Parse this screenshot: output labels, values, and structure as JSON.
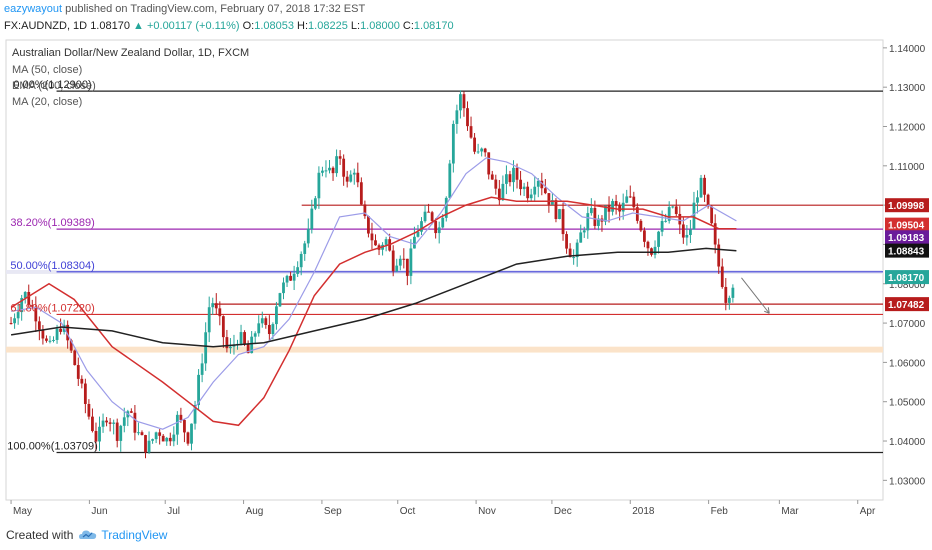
{
  "header": {
    "user": "eazywayout",
    "published_text": "published on TradingView.com, February 07, 2018 17:32 EST",
    "symbol": "FX:AUDNZD, 1D",
    "last": "1.08170",
    "change": "+0.00117 (+0.11%)",
    "o_label": "O:",
    "o_value": "1.08053",
    "h_label": "H:",
    "h_value": "1.08225",
    "l_label": "L:",
    "l_value": "1.08000",
    "c_label": "C:",
    "c_value": "1.08170"
  },
  "legend": {
    "title": "Australian Dollar/New Zealand Dollar, 1D, FXCM",
    "items": [
      "MA (50, close)",
      "EMA (200, close)",
      "MA (20, close)"
    ]
  },
  "footer": {
    "created_with": "Created with",
    "brand": "TradingView"
  },
  "colors": {
    "bull": "#26a69a",
    "bear": "#b71c1c",
    "ma50": "#9c9ce8",
    "ema200": "#222222",
    "ma20": "#d32f2f",
    "fib": "#7b1fa2",
    "fib50": "#3f3fd6",
    "fib618": "#d32f2f",
    "zone": "#fbe3c9"
  },
  "chart_data": {
    "type": "candlestick",
    "y_axis": {
      "range": [
        1.025,
        1.142
      ],
      "ticks": [
        "1.14000",
        "1.13000",
        "1.12000",
        "1.11000",
        "1.10000",
        "1.09000",
        "1.08000",
        "1.07000",
        "1.06000",
        "1.05000",
        "1.04000",
        "1.03000"
      ]
    },
    "x_axis": {
      "labels": [
        {
          "label": "May",
          "t": 0
        },
        {
          "label": "Jun",
          "t": 31
        },
        {
          "label": "Jul",
          "t": 61
        },
        {
          "label": "Aug",
          "t": 92
        },
        {
          "label": "Sep",
          "t": 123
        },
        {
          "label": "Oct",
          "t": 153
        },
        {
          "label": "Nov",
          "t": 184
        },
        {
          "label": "Dec",
          "t": 214
        },
        {
          "label": "2018",
          "t": 245
        },
        {
          "label": "Feb",
          "t": 276
        },
        {
          "label": "Mar",
          "t": 304
        },
        {
          "label": "Apr",
          "t": 335
        }
      ],
      "range": [
        -2,
        345
      ]
    },
    "price_anchors": [
      [
        0,
        1.07
      ],
      [
        5,
        1.078
      ],
      [
        10,
        1.072
      ],
      [
        15,
        1.063
      ],
      [
        20,
        1.07
      ],
      [
        25,
        1.06
      ],
      [
        30,
        1.048
      ],
      [
        34,
        1.04
      ],
      [
        38,
        1.047
      ],
      [
        42,
        1.042
      ],
      [
        46,
        1.048
      ],
      [
        50,
        1.042
      ],
      [
        54,
        1.038
      ],
      [
        58,
        1.043
      ],
      [
        62,
        1.04
      ],
      [
        66,
        1.046
      ],
      [
        70,
        1.041
      ],
      [
        73,
        1.05
      ],
      [
        76,
        1.063
      ],
      [
        79,
        1.077
      ],
      [
        83,
        1.069
      ],
      [
        86,
        1.062
      ],
      [
        90,
        1.067
      ],
      [
        94,
        1.062
      ],
      [
        98,
        1.071
      ],
      [
        102,
        1.067
      ],
      [
        106,
        1.078
      ],
      [
        110,
        1.081
      ],
      [
        114,
        1.087
      ],
      [
        118,
        1.093
      ],
      [
        121,
        1.106
      ],
      [
        124,
        1.111
      ],
      [
        127,
        1.107
      ],
      [
        130,
        1.113
      ],
      [
        133,
        1.105
      ],
      [
        136,
        1.11
      ],
      [
        139,
        1.097
      ],
      [
        142,
        1.093
      ],
      [
        145,
        1.088
      ],
      [
        148,
        1.092
      ],
      [
        151,
        1.085
      ],
      [
        154,
        1.088
      ],
      [
        157,
        1.083
      ],
      [
        160,
        1.093
      ],
      [
        163,
        1.096
      ],
      [
        166,
        1.098
      ],
      [
        169,
        1.093
      ],
      [
        172,
        1.102
      ],
      [
        175,
        1.121
      ],
      [
        178,
        1.128
      ],
      [
        181,
        1.12
      ],
      [
        184,
        1.112
      ],
      [
        187,
        1.114
      ],
      [
        190,
        1.106
      ],
      [
        193,
        1.103
      ],
      [
        196,
        1.106
      ],
      [
        199,
        1.108
      ],
      [
        202,
        1.105
      ],
      [
        205,
        1.103
      ],
      [
        208,
        1.108
      ],
      [
        211,
        1.104
      ],
      [
        214,
        1.1
      ],
      [
        217,
        1.097
      ],
      [
        220,
        1.09
      ],
      [
        223,
        1.086
      ],
      [
        226,
        1.094
      ],
      [
        229,
        1.098
      ],
      [
        232,
        1.095
      ],
      [
        235,
        1.098
      ],
      [
        238,
        1.1
      ],
      [
        241,
        1.098
      ],
      [
        244,
        1.102
      ],
      [
        247,
        1.099
      ],
      [
        250,
        1.093
      ],
      [
        253,
        1.088
      ],
      [
        256,
        1.093
      ],
      [
        259,
        1.096
      ],
      [
        262,
        1.1
      ],
      [
        265,
        1.093
      ],
      [
        268,
        1.091
      ],
      [
        271,
        1.103
      ],
      [
        273,
        1.105
      ],
      [
        275,
        1.1
      ],
      [
        277,
        1.095
      ],
      [
        279,
        1.087
      ],
      [
        281,
        1.082
      ],
      [
        283,
        1.076
      ],
      [
        285,
        1.08
      ],
      [
        287,
        1.0817
      ]
    ],
    "ma20": [
      [
        0,
        1.074
      ],
      [
        15,
        1.08
      ],
      [
        25,
        1.076
      ],
      [
        40,
        1.064
      ],
      [
        60,
        1.055
      ],
      [
        70,
        1.05
      ],
      [
        80,
        1.045
      ],
      [
        90,
        1.044
      ],
      [
        100,
        1.051
      ],
      [
        110,
        1.063
      ],
      [
        120,
        1.077
      ],
      [
        130,
        1.085
      ],
      [
        140,
        1.088
      ],
      [
        150,
        1.09
      ],
      [
        160,
        1.093
      ],
      [
        170,
        1.097
      ],
      [
        180,
        1.1
      ],
      [
        190,
        1.102
      ],
      [
        200,
        1.101
      ],
      [
        210,
        1.101
      ],
      [
        220,
        1.101
      ],
      [
        230,
        1.1
      ],
      [
        240,
        1.099
      ],
      [
        250,
        1.099
      ],
      [
        260,
        1.097
      ],
      [
        270,
        1.097
      ],
      [
        280,
        1.094
      ],
      [
        287,
        1.094
      ]
    ],
    "ma50_thin": [
      [
        0,
        1.073
      ],
      [
        10,
        1.074
      ],
      [
        20,
        1.07
      ],
      [
        30,
        1.058
      ],
      [
        40,
        1.05
      ],
      [
        50,
        1.045
      ],
      [
        60,
        1.043
      ],
      [
        70,
        1.046
      ],
      [
        80,
        1.055
      ],
      [
        90,
        1.062
      ],
      [
        100,
        1.064
      ],
      [
        110,
        1.071
      ],
      [
        120,
        1.083
      ],
      [
        130,
        1.097
      ],
      [
        140,
        1.098
      ],
      [
        150,
        1.092
      ],
      [
        160,
        1.09
      ],
      [
        170,
        1.098
      ],
      [
        180,
        1.108
      ],
      [
        188,
        1.112
      ],
      [
        196,
        1.111
      ],
      [
        206,
        1.108
      ],
      [
        216,
        1.102
      ],
      [
        226,
        1.097
      ],
      [
        236,
        1.096
      ],
      [
        246,
        1.098
      ],
      [
        256,
        1.097
      ],
      [
        266,
        1.096
      ],
      [
        276,
        1.1
      ],
      [
        287,
        1.096
      ]
    ],
    "ema200": [
      [
        0,
        1.067
      ],
      [
        20,
        1.069
      ],
      [
        40,
        1.068
      ],
      [
        60,
        1.065
      ],
      [
        80,
        1.064
      ],
      [
        100,
        1.065
      ],
      [
        120,
        1.068
      ],
      [
        140,
        1.071
      ],
      [
        160,
        1.075
      ],
      [
        180,
        1.08
      ],
      [
        200,
        1.085
      ],
      [
        220,
        1.087
      ],
      [
        240,
        1.088
      ],
      [
        260,
        1.088
      ],
      [
        275,
        1.089
      ],
      [
        287,
        1.0884
      ]
    ],
    "horizontal_lines": [
      {
        "label": "0.00%(1.12900)",
        "value": 1.129,
        "color": "#222222",
        "t_start": 18
      },
      {
        "label": "38.20%(1.09389)",
        "value": 1.09389,
        "color": "#9c27b0",
        "t_start": 18
      },
      {
        "label": "50.00%(1.08304)",
        "value": 1.08304,
        "color": "#3f3fd6",
        "t_start": 18
      },
      {
        "label": "61.80%(1.07220)",
        "value": 1.0722,
        "color": "#d32f2f",
        "t_start": 18
      },
      {
        "label": "100.00%(1.03709)",
        "value": 1.03709,
        "color": "#222222",
        "t_start": 18
      },
      {
        "label": "",
        "value": 1.09998,
        "color": "#b71c1c",
        "t_start": 115
      },
      {
        "label": "",
        "value": 1.07482,
        "color": "#b71c1c",
        "t_start": 80
      }
    ],
    "zones": [
      {
        "from": 1.0625,
        "to": 1.064,
        "color": "#fbe3c9"
      },
      {
        "from": 1.0825,
        "to": 1.0835,
        "color": "#e8e8f4"
      }
    ],
    "price_labels": [
      {
        "text": "1.09998",
        "value": 1.09998,
        "bg": "#b71c1c",
        "fg": "#ffffff"
      },
      {
        "text": "1.09504",
        "value": 1.09504,
        "bg": "#d32f2f",
        "fg": "#ffffff"
      },
      {
        "text": "1.09183",
        "value": 1.09183,
        "bg": "#6a1b9a",
        "fg": "#ffffff"
      },
      {
        "text": "1.08843",
        "value": 1.08843,
        "bg": "#111111",
        "fg": "#ffffff"
      },
      {
        "text": "1.08170",
        "value": 1.0817,
        "bg": "#26a69a",
        "fg": "#ffffff"
      },
      {
        "text": "1.07482",
        "value": 1.07482,
        "bg": "#b71c1c",
        "fg": "#ffffff"
      }
    ],
    "projection_arrow": {
      "from": [
        289,
        1.0815
      ],
      "to": [
        300,
        1.0725
      ]
    }
  }
}
